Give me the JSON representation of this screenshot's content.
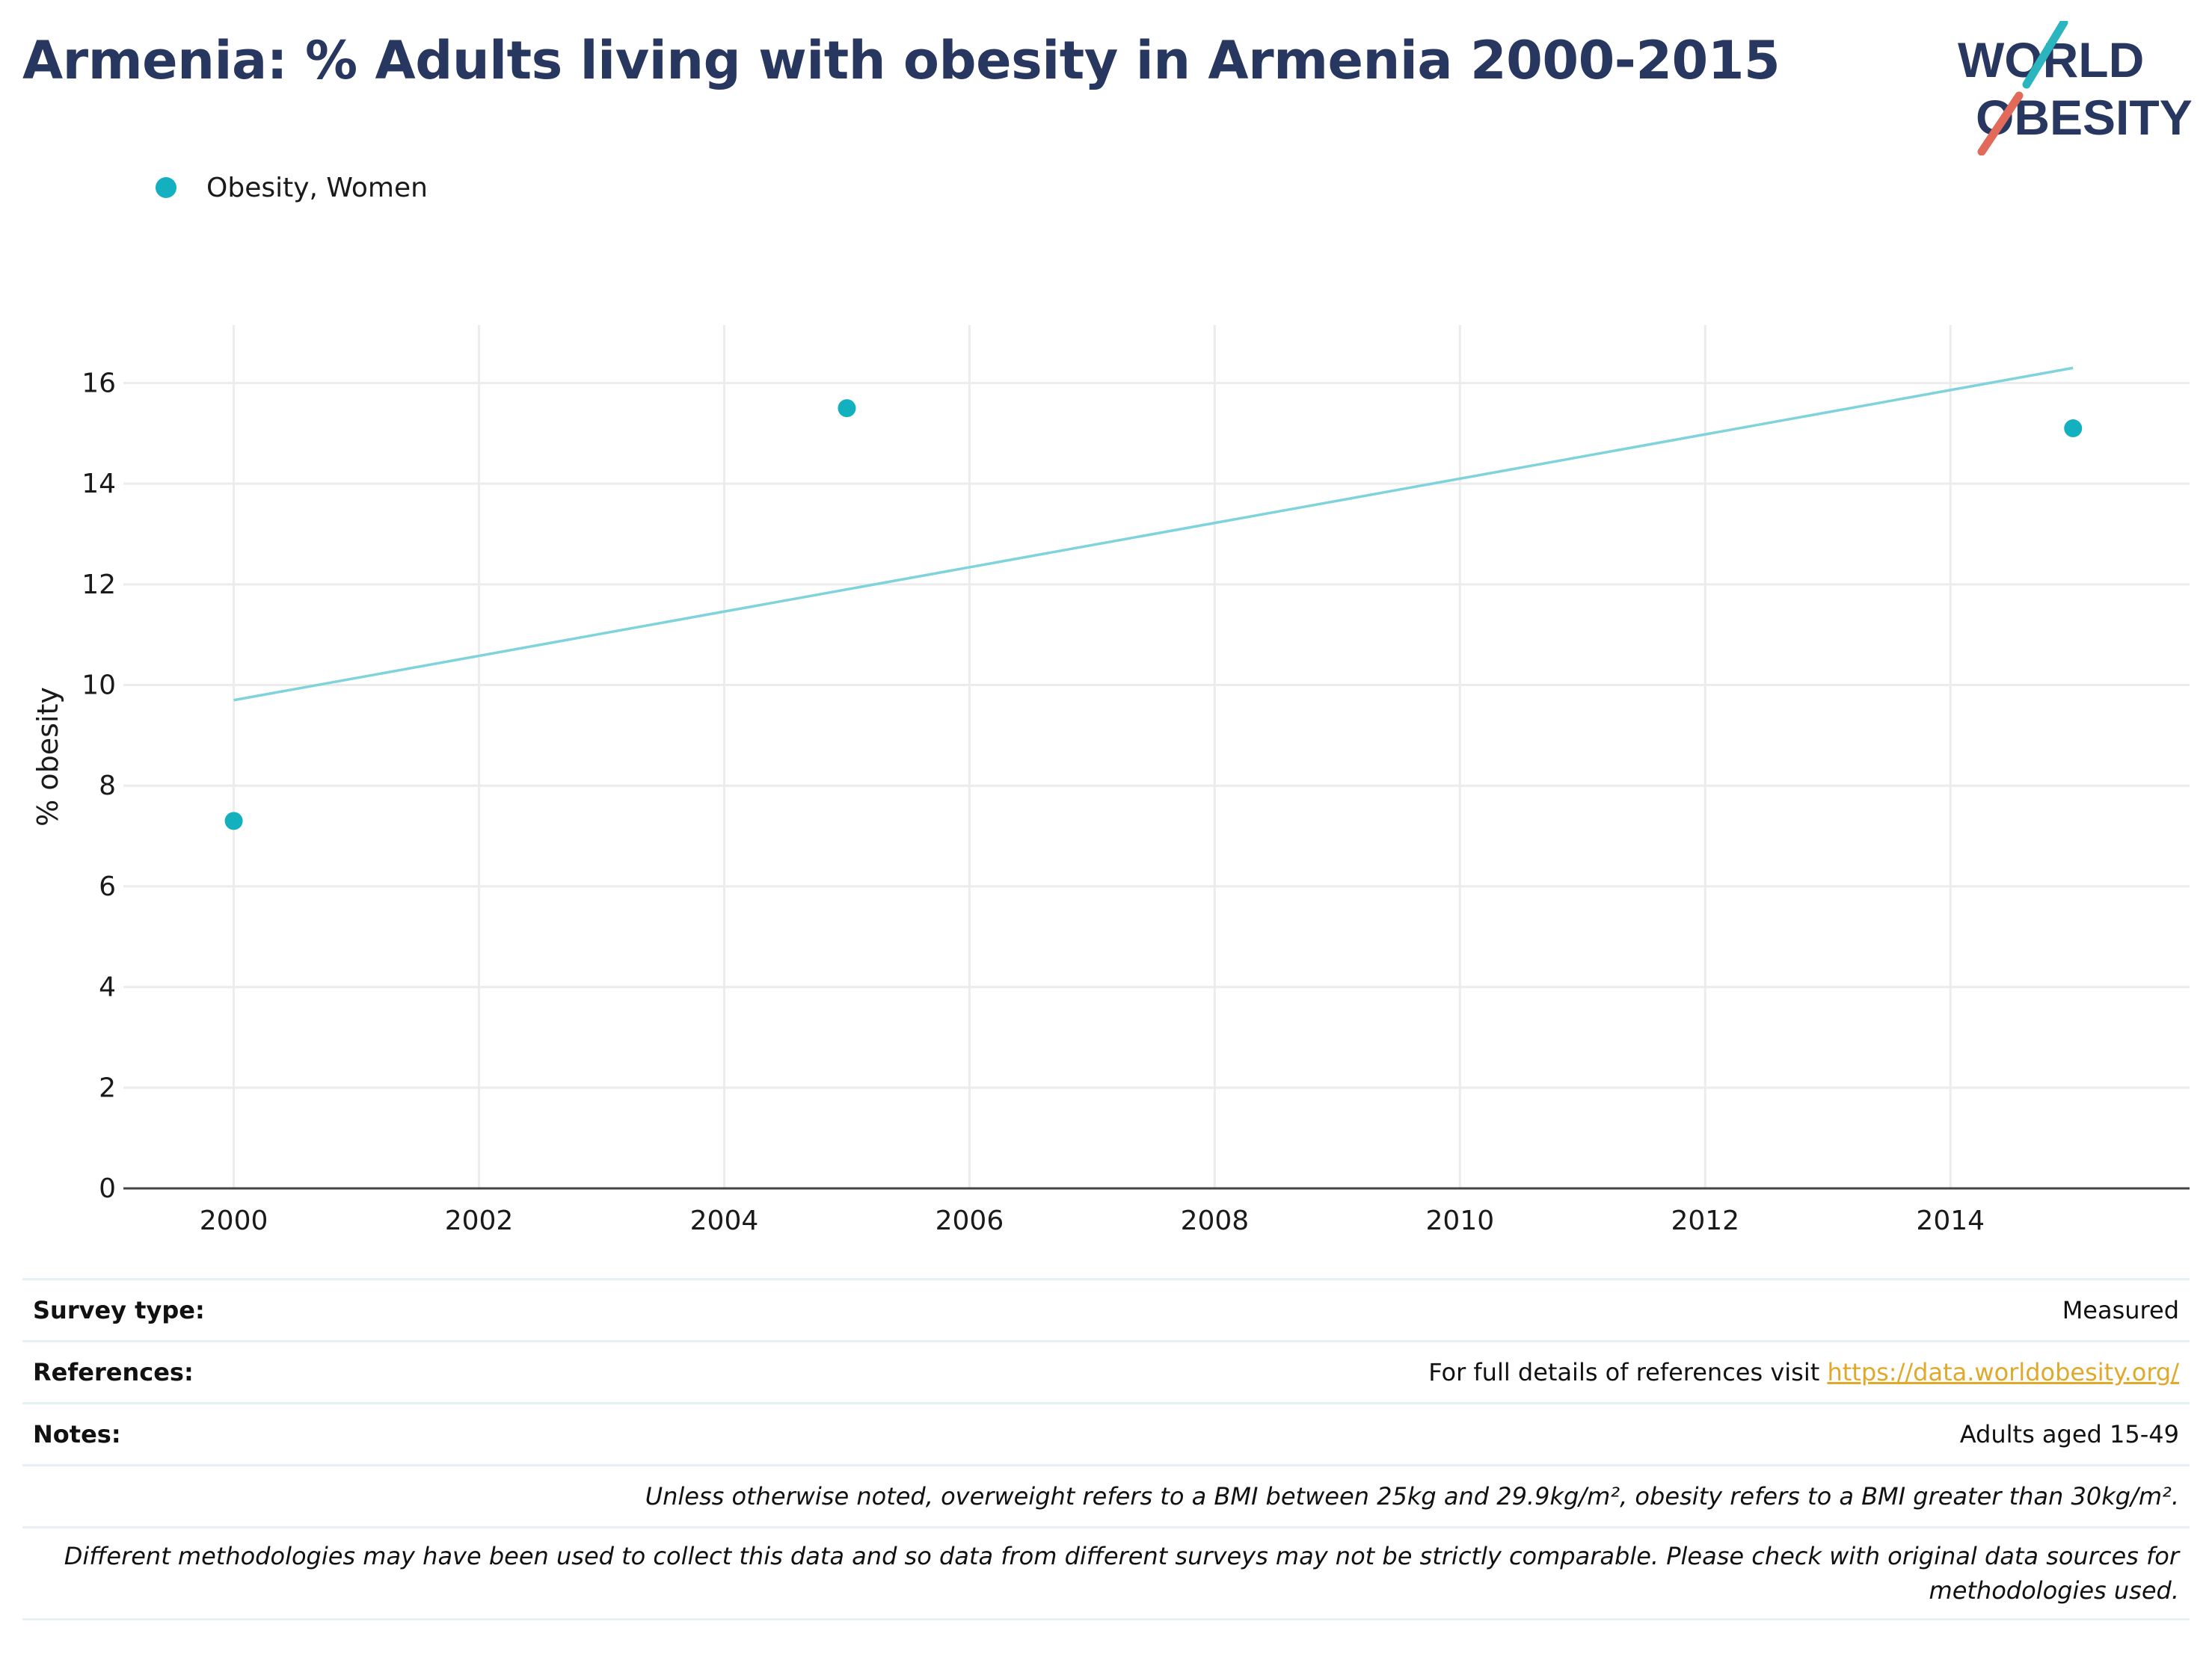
{
  "header": {
    "title": "Armenia: % Adults living with obesity in Armenia 2000-2015",
    "logo_line1": "WORLD",
    "logo_line2": "OBESITY"
  },
  "legend": {
    "label": "Obesity, Women"
  },
  "colors": {
    "title": "#283760",
    "series": "#13b0c0",
    "trend": "#7fd3da",
    "grid": "#ececec",
    "axis": "#444444",
    "logo_slash_top": "#2bb6bf",
    "logo_slash_bottom": "#e26a5a",
    "link": "#e0a92a"
  },
  "chart_data": {
    "type": "scatter",
    "title": "Armenia: % Adults living with obesity in Armenia 2000-2015",
    "ylabel": "% obesity",
    "xlabel": "",
    "xlim": [
      1999.1,
      2015.95
    ],
    "ylim": [
      0,
      17.15
    ],
    "xticks": [
      2000,
      2002,
      2004,
      2006,
      2008,
      2010,
      2012,
      2014
    ],
    "yticks": [
      0,
      2,
      4,
      6,
      8,
      10,
      12,
      14,
      16
    ],
    "grid": true,
    "legend_position": "top-left",
    "series": [
      {
        "name": "Obesity, Women",
        "x": [
          2000,
          2005,
          2015
        ],
        "y": [
          7.3,
          15.5,
          15.1
        ]
      }
    ],
    "trendline": {
      "x": [
        2000,
        2015
      ],
      "y": [
        9.7,
        16.3
      ]
    }
  },
  "meta": {
    "survey_type_label": "Survey type:",
    "survey_type_value": "Measured",
    "references_label": "References:",
    "references_text": "For full details of references visit ",
    "references_link": "https://data.worldobesity.org/",
    "notes_label": "Notes:",
    "notes_value": "Adults aged 15-49",
    "definition_note": "Unless otherwise noted, overweight refers to a BMI between 25kg and 29.9kg/m², obesity refers to a BMI greater than 30kg/m².",
    "methodology_note": "Different methodologies may have been used to collect this data and so data from different surveys may not be strictly comparable. Please check with original data sources for methodologies used."
  }
}
